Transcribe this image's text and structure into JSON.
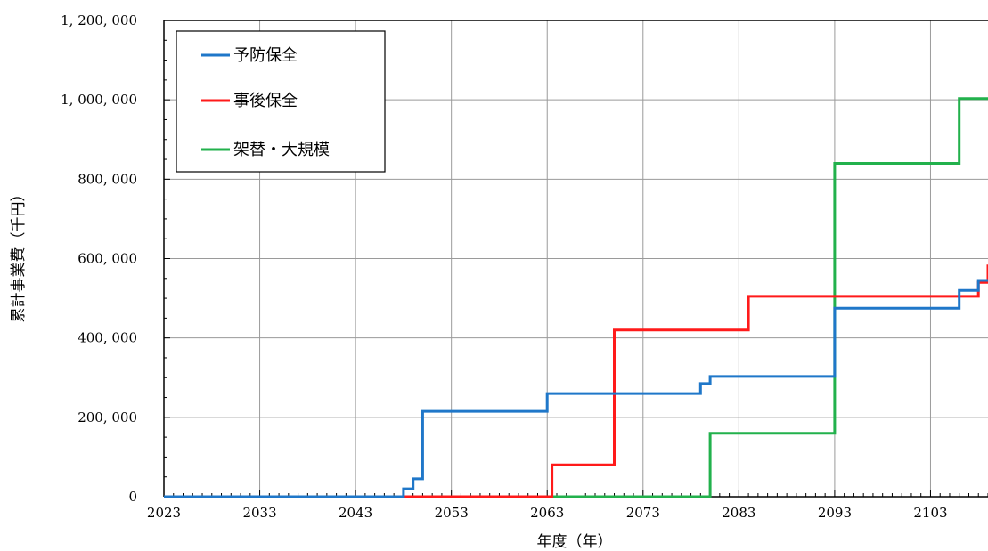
{
  "chart_data": {
    "type": "line",
    "step": true,
    "xlabel": "年度（年）",
    "ylabel": "累計事業費（千円）",
    "xlim": [
      2023,
      2109
    ],
    "ylim": [
      0,
      1200000
    ],
    "x_ticks": [
      2023,
      2033,
      2043,
      2053,
      2063,
      2073,
      2083,
      2093,
      2103
    ],
    "x_tick_labels": [
      "2023",
      "2033",
      "2043",
      "2053",
      "2063",
      "2073",
      "2083",
      "2093",
      "2103"
    ],
    "y_ticks": [
      0,
      200000,
      400000,
      600000,
      800000,
      1000000,
      1200000
    ],
    "y_tick_labels": [
      "0",
      "200, 000",
      "400, 000",
      "600, 000",
      "800, 000",
      "1, 000, 000",
      "1, 200, 000"
    ],
    "grid": true,
    "legend_position": "top-left",
    "series": [
      {
        "name": "予防保全",
        "color": "#1f77c9",
        "points": [
          [
            2023,
            0
          ],
          [
            2048,
            0
          ],
          [
            2048,
            20000
          ],
          [
            2049,
            20000
          ],
          [
            2049,
            45000
          ],
          [
            2050,
            45000
          ],
          [
            2050,
            215000
          ],
          [
            2063,
            215000
          ],
          [
            2063,
            260000
          ],
          [
            2079,
            260000
          ],
          [
            2079,
            285000
          ],
          [
            2080,
            285000
          ],
          [
            2080,
            303000
          ],
          [
            2093,
            303000
          ],
          [
            2093,
            475000
          ],
          [
            2106,
            475000
          ],
          [
            2106,
            520000
          ],
          [
            2108,
            520000
          ],
          [
            2108,
            545000
          ],
          [
            2109,
            545000
          ]
        ]
      },
      {
        "name": "事後保全",
        "color": "#ff1a1a",
        "points": [
          [
            2023,
            0
          ],
          [
            2063.5,
            0
          ],
          [
            2063.5,
            80000
          ],
          [
            2070,
            80000
          ],
          [
            2070,
            420000
          ],
          [
            2084,
            420000
          ],
          [
            2084,
            505000
          ],
          [
            2108,
            505000
          ],
          [
            2108,
            540000
          ],
          [
            2109,
            540000
          ],
          [
            2109,
            585000
          ]
        ]
      },
      {
        "name": "架替・大規模",
        "color": "#22b14c",
        "points": [
          [
            2023,
            0
          ],
          [
            2080,
            0
          ],
          [
            2080,
            160000
          ],
          [
            2093,
            160000
          ],
          [
            2093,
            840000
          ],
          [
            2106,
            840000
          ],
          [
            2106,
            1003000
          ],
          [
            2109,
            1003000
          ]
        ]
      }
    ]
  }
}
